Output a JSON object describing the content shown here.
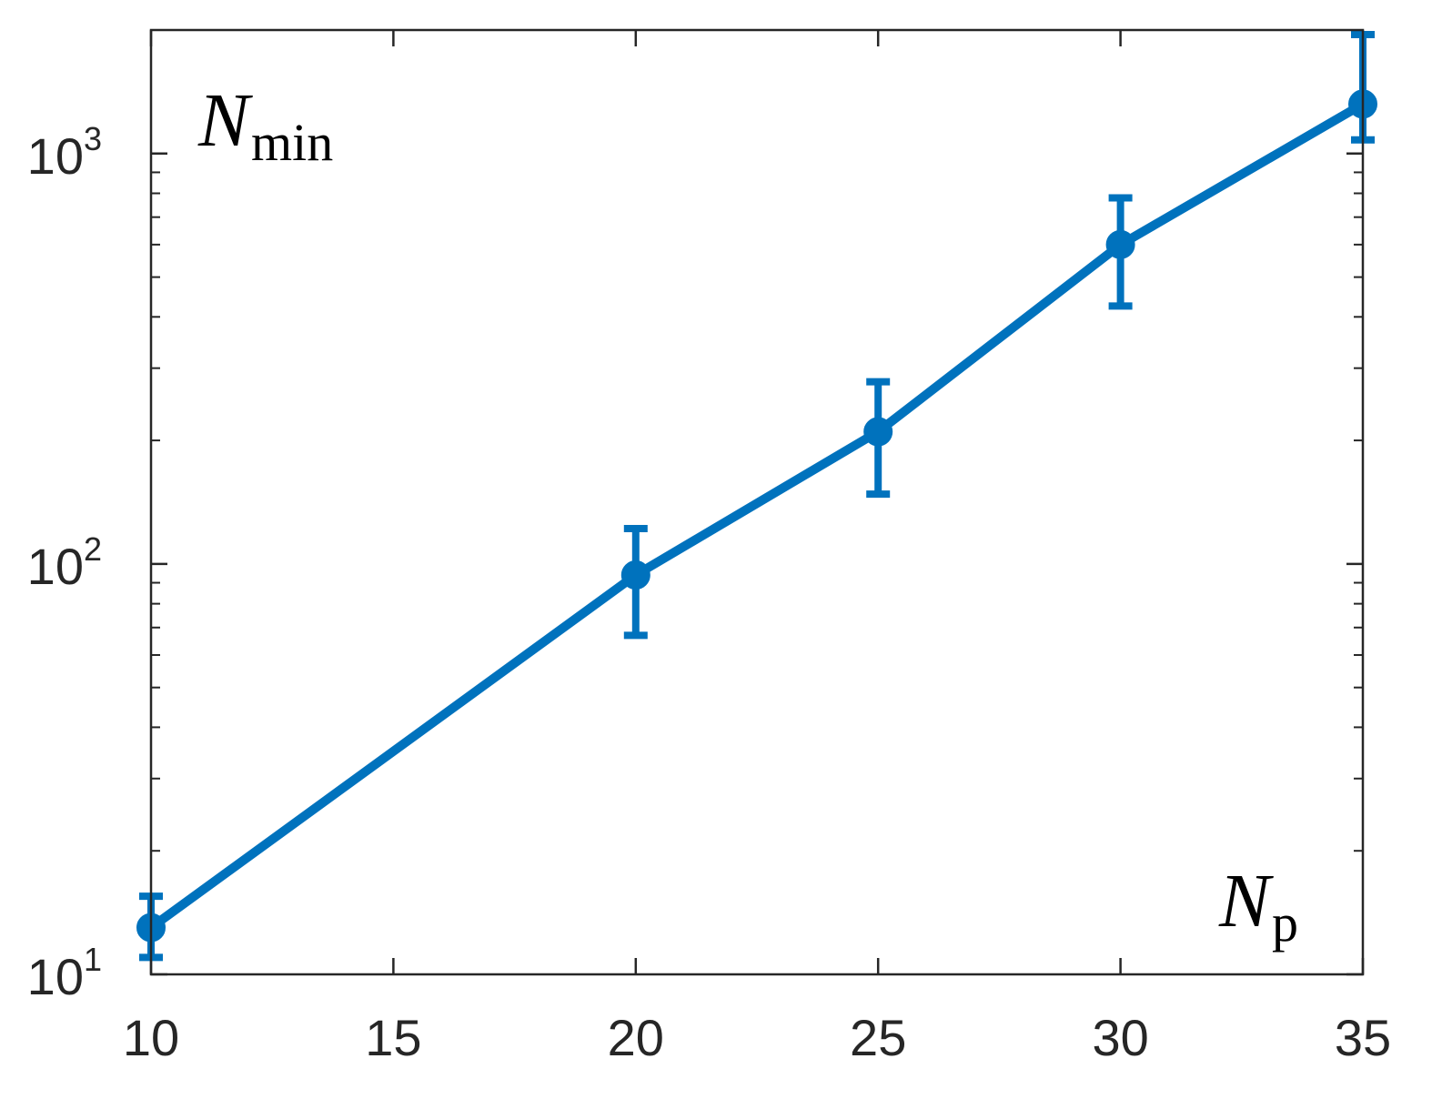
{
  "chart_data": {
    "type": "line",
    "title": "",
    "xlabel": {
      "main": "N",
      "sub": "p"
    },
    "ylabel": {
      "main": "N",
      "sub": "min"
    },
    "xlim": [
      10,
      35
    ],
    "ylim": [
      10,
      2000
    ],
    "yscale": "log",
    "grid": false,
    "x_ticks": [
      {
        "value": 10,
        "label": "10"
      },
      {
        "value": 15,
        "label": "15"
      },
      {
        "value": 20,
        "label": "20"
      },
      {
        "value": 25,
        "label": "25"
      },
      {
        "value": 30,
        "label": "30"
      },
      {
        "value": 35,
        "label": "35"
      }
    ],
    "y_ticks": [
      {
        "value": 10,
        "base": "10",
        "exp": "1"
      },
      {
        "value": 100,
        "base": "10",
        "exp": "2"
      },
      {
        "value": 1000,
        "base": "10",
        "exp": "3"
      }
    ],
    "series": [
      {
        "color": "#0072BD",
        "marker": "circle",
        "points": [
          {
            "x": 10,
            "y": 13,
            "y_low": 11,
            "y_high": 15.5
          },
          {
            "x": 20,
            "y": 94,
            "y_low": 67,
            "y_high": 122
          },
          {
            "x": 25,
            "y": 210,
            "y_low": 148,
            "y_high": 278
          },
          {
            "x": 30,
            "y": 600,
            "y_low": 425,
            "y_high": 780
          },
          {
            "x": 35,
            "y": 1320,
            "y_low": 1080,
            "y_high": 1950
          }
        ]
      }
    ]
  }
}
